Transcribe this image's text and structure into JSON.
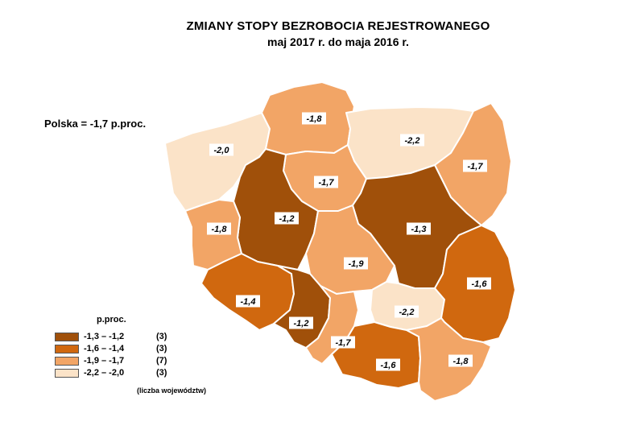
{
  "title": "ZMIANY STOPY BEZROBOCIA REJESTROWANEGO",
  "subtitle": "maj 2017 r. do maja 2016 r.",
  "national": "Polska = -1,7 p.proc.",
  "colors": {
    "c1": "#a0500a",
    "c2": "#d0680f",
    "c3": "#f2a566",
    "c4": "#fbe3c8"
  },
  "legend": {
    "title": "p.proc.",
    "classes": [
      {
        "range": "-1,3 – -1,2",
        "count": "(3)",
        "color": "#a0500a"
      },
      {
        "range": "-1,6 – -1,4",
        "count": "(3)",
        "color": "#d0680f"
      },
      {
        "range": "-1,9 – -1,7",
        "count": "(7)",
        "color": "#f2a566"
      },
      {
        "range": "-2,2 – -2,0",
        "count": "(3)",
        "color": "#fbe3c8"
      }
    ],
    "note": "(liczba województw)"
  },
  "regions": [
    {
      "id": "zachodniopomorskie",
      "value": "-2,0",
      "class": "c4"
    },
    {
      "id": "pomorskie",
      "value": "-1,8",
      "class": "c3"
    },
    {
      "id": "warminsko-mazurskie",
      "value": "-2,2",
      "class": "c4"
    },
    {
      "id": "podlaskie",
      "value": "-1,7",
      "class": "c3"
    },
    {
      "id": "kujawsko-pomorskie",
      "value": "-1,7",
      "class": "c3"
    },
    {
      "id": "wielkopolskie",
      "value": "-1,2",
      "class": "c1"
    },
    {
      "id": "lubuskie",
      "value": "-1,8",
      "class": "c3"
    },
    {
      "id": "mazowieckie",
      "value": "-1,3",
      "class": "c1"
    },
    {
      "id": "lodzkie",
      "value": "-1,9",
      "class": "c3"
    },
    {
      "id": "dolnoslaskie",
      "value": "-1,4",
      "class": "c2"
    },
    {
      "id": "opolskie",
      "value": "-1,2",
      "class": "c1"
    },
    {
      "id": "slaskie",
      "value": "-1,7",
      "class": "c3"
    },
    {
      "id": "swietokrzyskie",
      "value": "-2,2",
      "class": "c4"
    },
    {
      "id": "lubelskie",
      "value": "-1,6",
      "class": "c2"
    },
    {
      "id": "malopolskie",
      "value": "-1,6",
      "class": "c2"
    },
    {
      "id": "podkarpackie",
      "value": "-1,8",
      "class": "c3"
    }
  ]
}
